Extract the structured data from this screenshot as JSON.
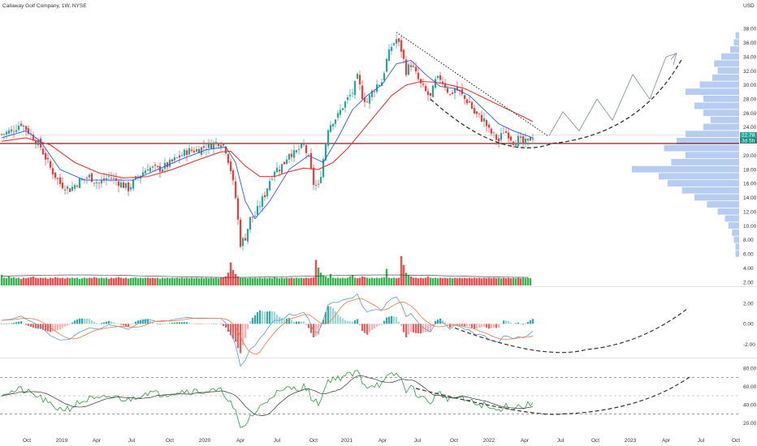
{
  "header": {
    "title": "Callaway Golf Company, 1W, NYSE"
  },
  "colors": {
    "up": "#26a69a",
    "upBar": "#22ab3f",
    "down": "#ef3a3a",
    "ema": "#e53935",
    "fast": "#2a5ee8",
    "vol_profile": "#a9c3ef",
    "hline": "#8b0000",
    "badge1": "#26a69a",
    "badge2": "#1e8f7b"
  },
  "chart_data": [
    {
      "type": "candlestick",
      "title": "Callaway Golf Company, 1W, NYSE",
      "currency_label": "USD",
      "y_ticks": [
        "38.00",
        "36.00",
        "34.00",
        "32.00",
        "30.00",
        "28.00",
        "26.00",
        "24.00",
        "22.00",
        "20.00",
        "18.00",
        "16.00",
        "14.00",
        "12.00",
        "10.00",
        "8.00",
        "6.00",
        "4.00",
        "2.00"
      ],
      "y_tick_values": [
        38,
        36,
        34,
        32,
        30,
        28,
        26,
        24,
        22,
        20,
        18,
        16,
        14,
        12,
        10,
        8,
        6,
        4,
        2
      ],
      "ylim": [
        2,
        40
      ],
      "x_ticks": [
        "Oct",
        "2019",
        "Apr",
        "Jul",
        "Oct",
        "2020",
        "Apr",
        "Jul",
        "Oct",
        "2021",
        "Apr",
        "Jul",
        "Oct",
        "2022",
        "Apr",
        "Jul",
        "Oct",
        "2023",
        "Apr",
        "Jul",
        "Oct"
      ],
      "price_badges": [
        "22.78",
        "3d 5h"
      ],
      "horizontal_line": 21.7,
      "close_path": [
        [
          0,
          23.0
        ],
        [
          4,
          23.5
        ],
        [
          8,
          24.6
        ],
        [
          12,
          23.0
        ],
        [
          16,
          21.2
        ],
        [
          20,
          18.2
        ],
        [
          24,
          16.0
        ],
        [
          28,
          15.2
        ],
        [
          32,
          16.4
        ],
        [
          36,
          17.0
        ],
        [
          40,
          16.0
        ],
        [
          44,
          17.0
        ],
        [
          48,
          16.2
        ],
        [
          52,
          15.3
        ],
        [
          56,
          17.0
        ],
        [
          60,
          18.3
        ],
        [
          64,
          18.0
        ],
        [
          68,
          18.6
        ],
        [
          72,
          19.6
        ],
        [
          76,
          20.6
        ],
        [
          80,
          20.8
        ],
        [
          84,
          21.3
        ],
        [
          88,
          21.8
        ],
        [
          90,
          22.0
        ],
        [
          92,
          20.8
        ],
        [
          94,
          18.0
        ],
        [
          96,
          14.0
        ],
        [
          98,
          7.5
        ],
        [
          100,
          8.4
        ],
        [
          102,
          11.0
        ],
        [
          104,
          11.5
        ],
        [
          106,
          13.0
        ],
        [
          108,
          14.5
        ],
        [
          110,
          16.5
        ],
        [
          112,
          18.0
        ],
        [
          114,
          18.2
        ],
        [
          116,
          19.0
        ],
        [
          118,
          20.5
        ],
        [
          120,
          20.2
        ],
        [
          122,
          20.8
        ],
        [
          124,
          21.4
        ],
        [
          126,
          19.5
        ],
        [
          128,
          16.0
        ],
        [
          130,
          15.5
        ],
        [
          132,
          19.5
        ],
        [
          134,
          24.0
        ],
        [
          136,
          25.0
        ],
        [
          138,
          25.6
        ],
        [
          140,
          27.0
        ],
        [
          142,
          28.0
        ],
        [
          144,
          29.0
        ],
        [
          146,
          31.0
        ],
        [
          148,
          28.5
        ],
        [
          150,
          27.6
        ],
        [
          152,
          29.0
        ],
        [
          154,
          30.0
        ],
        [
          156,
          30.5
        ],
        [
          158,
          33.5
        ],
        [
          160,
          35.5
        ],
        [
          162,
          36.5
        ],
        [
          164,
          35.0
        ],
        [
          166,
          32.0
        ],
        [
          168,
          33.0
        ],
        [
          170,
          31.5
        ],
        [
          172,
          30.0
        ],
        [
          174,
          29.0
        ],
        [
          176,
          28.2
        ],
        [
          178,
          30.5
        ],
        [
          180,
          31.0
        ],
        [
          182,
          30.0
        ],
        [
          184,
          28.5
        ],
        [
          186,
          29.5
        ],
        [
          188,
          29.0
        ],
        [
          190,
          28.0
        ],
        [
          192,
          27.5
        ],
        [
          194,
          26.0
        ],
        [
          196,
          25.5
        ],
        [
          198,
          25.0
        ],
        [
          200,
          23.5
        ],
        [
          202,
          22.8
        ],
        [
          204,
          22.0
        ],
        [
          206,
          23.5
        ],
        [
          208,
          23.0
        ],
        [
          210,
          22.0
        ],
        [
          212,
          22.3
        ],
        [
          214,
          21.6
        ],
        [
          216,
          22.0
        ],
        [
          218,
          22.8
        ]
      ],
      "ema_path": [
        [
          0,
          22.0
        ],
        [
          10,
          22.5
        ],
        [
          20,
          21.5
        ],
        [
          30,
          19.0
        ],
        [
          40,
          17.5
        ],
        [
          50,
          16.8
        ],
        [
          60,
          17.0
        ],
        [
          70,
          18.0
        ],
        [
          80,
          19.3
        ],
        [
          90,
          20.5
        ],
        [
          94,
          20.6
        ],
        [
          100,
          18.5
        ],
        [
          106,
          17.0
        ],
        [
          112,
          17.0
        ],
        [
          118,
          17.7
        ],
        [
          124,
          18.2
        ],
        [
          130,
          18.0
        ],
        [
          136,
          19.0
        ],
        [
          142,
          21.0
        ],
        [
          148,
          23.5
        ],
        [
          154,
          26.0
        ],
        [
          160,
          28.5
        ],
        [
          166,
          30.0
        ],
        [
          172,
          30.5
        ],
        [
          178,
          30.4
        ],
        [
          184,
          30.0
        ],
        [
          190,
          29.5
        ],
        [
          196,
          28.5
        ],
        [
          202,
          27.5
        ],
        [
          208,
          26.5
        ],
        [
          214,
          25.5
        ],
        [
          218,
          24.8
        ]
      ],
      "fast_path": [
        [
          0,
          22.5
        ],
        [
          10,
          23.5
        ],
        [
          16,
          22.0
        ],
        [
          24,
          18.0
        ],
        [
          34,
          16.5
        ],
        [
          44,
          16.5
        ],
        [
          54,
          16.5
        ],
        [
          64,
          18.0
        ],
        [
          74,
          19.5
        ],
        [
          84,
          20.8
        ],
        [
          92,
          21.2
        ],
        [
          96,
          19.0
        ],
        [
          100,
          13.5
        ],
        [
          104,
          11.0
        ],
        [
          110,
          13.5
        ],
        [
          118,
          18.0
        ],
        [
          126,
          20.0
        ],
        [
          132,
          19.0
        ],
        [
          138,
          22.5
        ],
        [
          144,
          26.5
        ],
        [
          150,
          28.5
        ],
        [
          156,
          30.0
        ],
        [
          162,
          33.0
        ],
        [
          168,
          33.5
        ],
        [
          174,
          31.5
        ],
        [
          180,
          29.8
        ],
        [
          186,
          29.5
        ],
        [
          192,
          28.5
        ],
        [
          198,
          26.5
        ],
        [
          204,
          24.5
        ],
        [
          210,
          23.5
        ],
        [
          218,
          22.5
        ]
      ],
      "volume": [
        0.42,
        0.3,
        0.28,
        0.35,
        0.3,
        0.32,
        0.28,
        0.3,
        0.25,
        0.3,
        0.28,
        0.3,
        0.32,
        0.35,
        0.3,
        0.28,
        0.3,
        0.28,
        0.3,
        0.26,
        0.3,
        0.28,
        0.32,
        0.3,
        0.28,
        0.3,
        0.27,
        0.3,
        0.28,
        0.3,
        0.28,
        0.3,
        0.25,
        0.28,
        0.3,
        0.28,
        0.3,
        0.28,
        0.32,
        0.3,
        0.28,
        0.3,
        0.28,
        0.3,
        0.26,
        0.3,
        0.28,
        0.3,
        0.32,
        0.3,
        0.28,
        0.3,
        0.27,
        0.29,
        0.3,
        0.31,
        0.28,
        0.3,
        0.28,
        0.3,
        0.3,
        0.28,
        0.3,
        0.28,
        0.3,
        0.26,
        0.3,
        0.28,
        0.3,
        0.28,
        0.3,
        0.28,
        0.3,
        0.28,
        0.3,
        0.28,
        0.3,
        0.28,
        0.3,
        0.28,
        0.3,
        0.28,
        0.3,
        0.28,
        0.3,
        0.28,
        0.3,
        0.28,
        0.3,
        0.28,
        0.3,
        0.32,
        0.35,
        0.5,
        0.9,
        0.6,
        0.45,
        0.35,
        0.3,
        0.3,
        0.3,
        0.28,
        0.3,
        0.28,
        0.3,
        0.28,
        0.3,
        0.28,
        0.3,
        0.28,
        0.3,
        0.28,
        0.32,
        0.3,
        0.28,
        0.3,
        0.28,
        0.3,
        0.28,
        0.3,
        0.28,
        0.3,
        0.28,
        0.3,
        0.28,
        0.3,
        0.28,
        0.3,
        0.32,
        1.0,
        0.7,
        0.5,
        0.4,
        0.35,
        0.3,
        0.45,
        0.3,
        0.28,
        0.3,
        0.28,
        0.3,
        0.28,
        0.3,
        0.35,
        0.4,
        0.3,
        0.28,
        0.3,
        0.35,
        0.32,
        0.3,
        0.28,
        0.3,
        0.28,
        0.3,
        0.28,
        0.3,
        0.32,
        0.65,
        0.3,
        0.28,
        0.3,
        0.28,
        0.3,
        1.15,
        0.8,
        0.5,
        0.4,
        0.35,
        0.3,
        0.3,
        0.28,
        0.3,
        0.28,
        0.3,
        0.35,
        0.3,
        0.28,
        0.3,
        0.28,
        0.3,
        0.28,
        0.3,
        0.28,
        0.3,
        0.28,
        0.3,
        0.28,
        0.3,
        0.28,
        0.3,
        0.28,
        0.3,
        0.28,
        0.3,
        0.28,
        0.3,
        0.28,
        0.3,
        0.28,
        0.3,
        0.28,
        0.3,
        0.28,
        0.3,
        0.28,
        0.3,
        0.28,
        0.3,
        0.28,
        0.3,
        0.28,
        0.3,
        0.28,
        0.3,
        0.28,
        0.3,
        0.28
      ]
    },
    {
      "type": "macd",
      "y_ticks": [
        "2.00",
        "0.00",
        "-2.00"
      ],
      "y_tick_values": [
        2,
        0,
        -2
      ],
      "ylim": [
        -3.2,
        3.5
      ]
    },
    {
      "type": "rsi",
      "y_ticks": [
        "80.00",
        "60.00",
        "40.00",
        "20.00"
      ],
      "y_tick_values": [
        80,
        60,
        40,
        20
      ],
      "ylim": [
        10,
        90
      ],
      "levels": [
        70,
        50,
        30
      ]
    }
  ]
}
